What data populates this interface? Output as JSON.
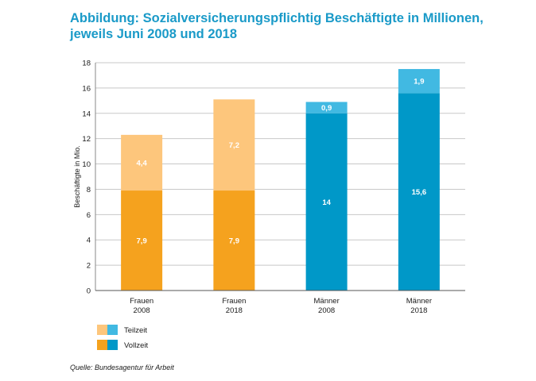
{
  "title_line1": "Abbildung: Sozialversicherungspflichtig Beschäftigte in Millionen,",
  "title_line2": "jeweils Juni 2008 und 2018",
  "source": "Quelle: Bundesagentur für Arbeit",
  "chart_data": {
    "type": "bar",
    "stacked": true,
    "title": "Abbildung: Sozialversicherungspflichtig Beschäftigte in Millionen, jeweils Juni 2008 und 2018",
    "xlabel": "",
    "ylabel": "Beschäftigte in Mio.",
    "ylim": [
      0,
      18
    ],
    "yticks": [
      "0",
      "2",
      "4",
      "6",
      "8",
      "10",
      "12",
      "14",
      "16",
      "18"
    ],
    "grid": true,
    "legend_position": "bottom-left",
    "categories": [
      {
        "line1": "Frauen",
        "line2": "2008",
        "group": "frauen"
      },
      {
        "line1": "Frauen",
        "line2": "2018",
        "group": "frauen"
      },
      {
        "line1": "Männer",
        "line2": "2008",
        "group": "maenner"
      },
      {
        "line1": "Männer",
        "line2": "2018",
        "group": "maenner"
      }
    ],
    "series": [
      {
        "name": "Vollzeit",
        "values": [
          7.9,
          7.9,
          14,
          15.6
        ],
        "labels": [
          "7,9",
          "7,9",
          "14",
          "15,6"
        ]
      },
      {
        "name": "Teilzeit",
        "values": [
          4.4,
          7.2,
          0.9,
          1.9
        ],
        "labels": [
          "4,4",
          "7,2",
          "0,9",
          "1,9"
        ]
      }
    ],
    "colors": {
      "frauen": {
        "Vollzeit": "#f5a21e",
        "Teilzeit": "#fdc67c"
      },
      "maenner": {
        "Vollzeit": "#0098c8",
        "Teilzeit": "#41b9e2"
      }
    },
    "legend": [
      {
        "label": "Teilzeit",
        "series": "Teilzeit"
      },
      {
        "label": "Vollzeit",
        "series": "Vollzeit"
      }
    ]
  }
}
